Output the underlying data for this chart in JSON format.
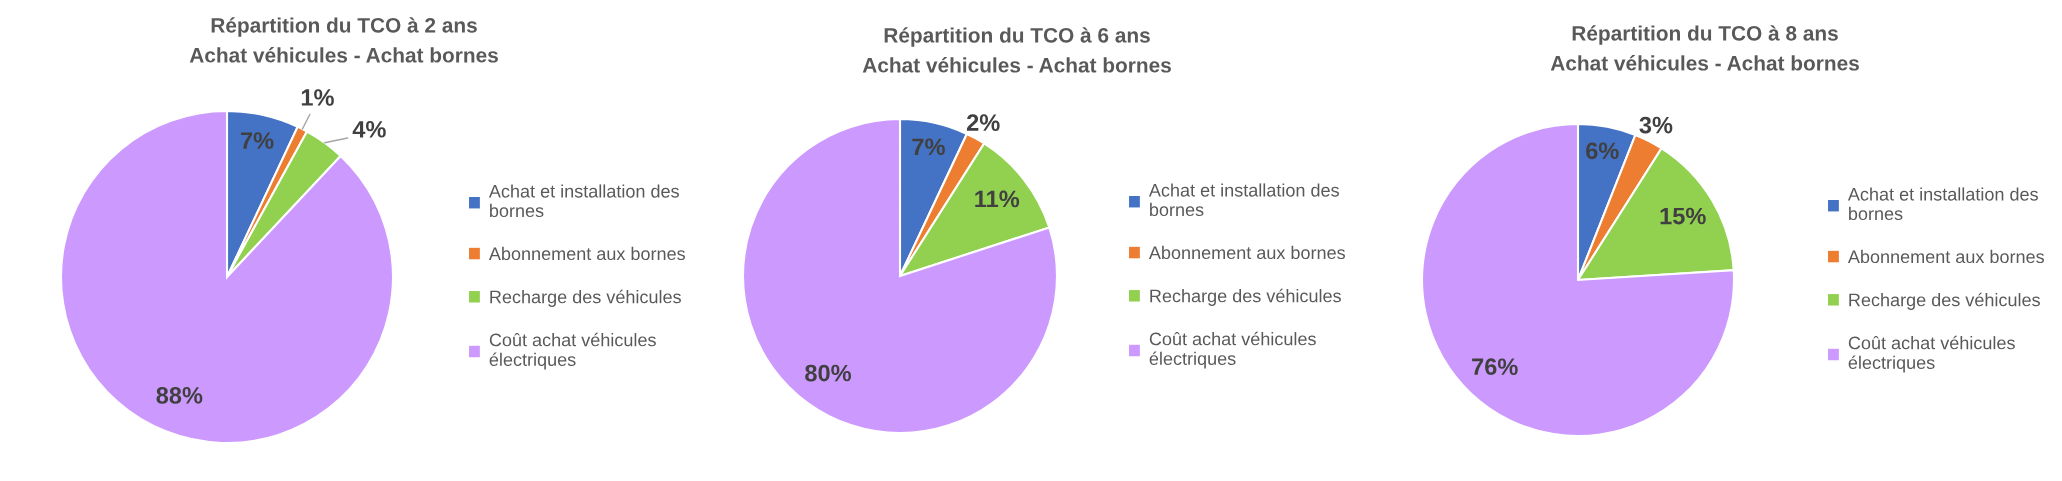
{
  "chart_data": [
    {
      "type": "pie",
      "title": "Répartition du TCO à 2 ans",
      "subtitle": "Achat véhicules - Achat bornes",
      "categories": [
        "Achat et installation des bornes",
        "Abonnement aux bornes",
        "Recharge des véhicules",
        "Coût achat véhicules électriques"
      ],
      "values": [
        7,
        1,
        4,
        88
      ],
      "colors": [
        "#4472c4",
        "#ed7d31",
        "#92d050",
        "#cc99ff"
      ],
      "value_labels": [
        "7%",
        "1%",
        "4%",
        "88%"
      ],
      "legend": "right"
    },
    {
      "type": "pie",
      "title": "Répartition du TCO à 6 ans",
      "subtitle": "Achat véhicules - Achat bornes",
      "categories": [
        "Achat et installation des bornes",
        "Abonnement aux bornes",
        "Recharge des véhicules",
        "Coût achat véhicules électriques"
      ],
      "values": [
        7,
        2,
        11,
        80
      ],
      "colors": [
        "#4472c4",
        "#ed7d31",
        "#92d050",
        "#cc99ff"
      ],
      "value_labels": [
        "7%",
        "2%",
        "11%",
        "80%"
      ],
      "legend": "right"
    },
    {
      "type": "pie",
      "title": "Répartition du TCO à 8 ans",
      "subtitle": "Achat véhicules - Achat bornes",
      "categories": [
        "Achat et installation des bornes",
        "Abonnement aux bornes",
        "Recharge des véhicules",
        "Coût achat véhicules électriques"
      ],
      "values": [
        6,
        3,
        15,
        76
      ],
      "colors": [
        "#4472c4",
        "#ed7d31",
        "#92d050",
        "#cc99ff"
      ],
      "value_labels": [
        "6%",
        "3%",
        "15%",
        "76%"
      ],
      "legend": "right"
    }
  ]
}
